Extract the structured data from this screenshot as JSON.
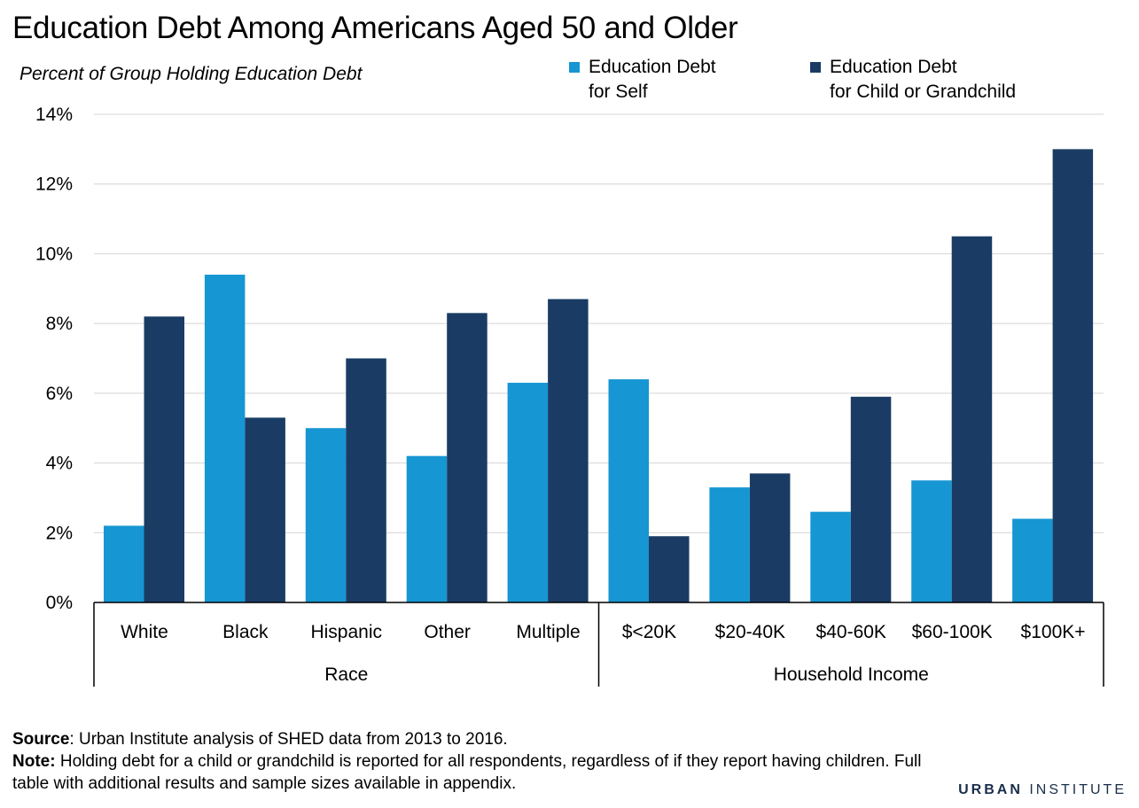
{
  "title": "Education Debt Among Americans Aged 50 and Older",
  "y_axis_label": "Percent of Group Holding Education Debt",
  "legend": [
    {
      "label": "Education Debt\nfor Self",
      "color": "#1696d2"
    },
    {
      "label": "Education Debt\nfor Child or Grandchild",
      "color": "#1a3c64"
    }
  ],
  "chart_data": {
    "type": "bar",
    "ylabel": "Percent of Group Holding Education Debt",
    "ylim": [
      0,
      14
    ],
    "yticks": [
      "0%",
      "2%",
      "4%",
      "6%",
      "8%",
      "10%",
      "12%",
      "14%"
    ],
    "grid": true,
    "categories": [
      "White",
      "Black",
      "Hispanic",
      "Other",
      "Multiple",
      "$<20K",
      "$20-40K",
      "$40-60K",
      "$60-100K",
      "$100K+"
    ],
    "groups": [
      {
        "label": "Race",
        "categories": [
          "White",
          "Black",
          "Hispanic",
          "Other",
          "Multiple"
        ]
      },
      {
        "label": "Household Income",
        "categories": [
          "$<20K",
          "$20-40K",
          "$40-60K",
          "$60-100K",
          "$100K+"
        ]
      }
    ],
    "series": [
      {
        "name": "Education Debt for Self",
        "color": "#1696d2",
        "values": [
          2.2,
          9.4,
          5.0,
          4.2,
          6.3,
          6.4,
          3.3,
          2.6,
          3.5,
          2.4
        ]
      },
      {
        "name": "Education Debt for Child or Grandchild",
        "color": "#1a3c64",
        "values": [
          8.2,
          5.3,
          7.0,
          8.3,
          8.7,
          1.9,
          3.7,
          5.9,
          10.5,
          13.0
        ]
      }
    ]
  },
  "footer": {
    "source_label": "Source",
    "source_text": ": Urban Institute analysis of SHED data from 2013 to 2016.",
    "note_label": "Note:",
    "note_text": " Holding debt for a child or grandchild is reported for all respondents, regardless of if they report having children. Full table with additional results and sample sizes available in appendix."
  },
  "logo": {
    "part1": "URBAN",
    "part2": "INSTITUTE"
  }
}
